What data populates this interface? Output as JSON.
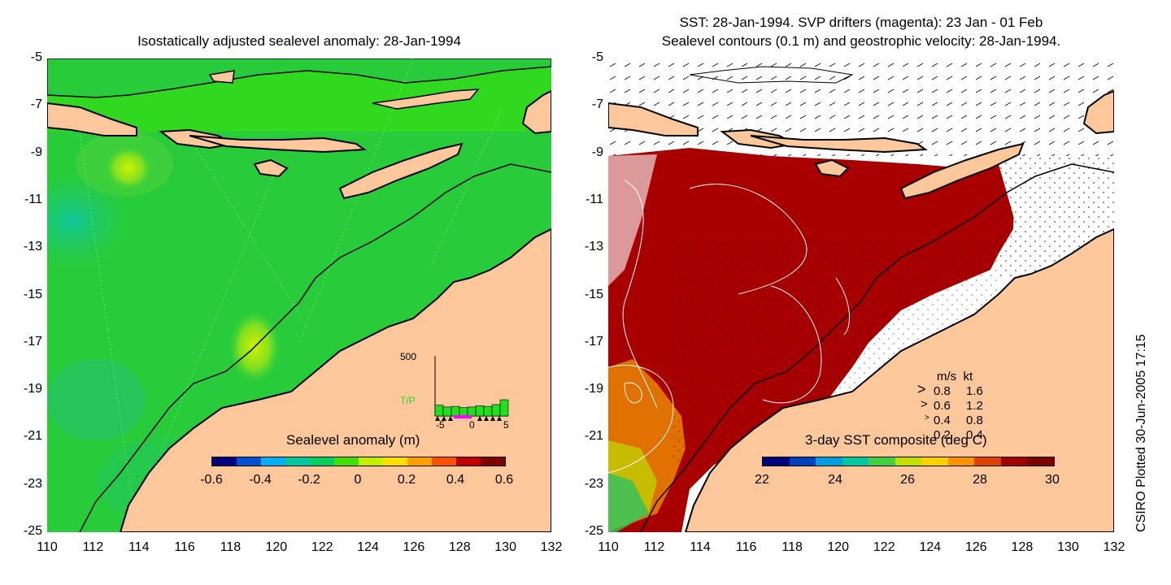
{
  "left_panel": {
    "title": "Isostatically adjusted sealevel anomaly: 28-Jan-1994",
    "colorbar": {
      "title": "Sealevel anomaly (m)",
      "labels": [
        "-0.6",
        "-0.4",
        "-0.2",
        "0",
        "0.2",
        "0.4",
        "0.6"
      ],
      "colors": [
        "#00007f",
        "#0050d0",
        "#00b0f0",
        "#00c8a0",
        "#00d060",
        "#40e000",
        "#c0f000",
        "#ffe000",
        "#ffa000",
        "#ff5000",
        "#c00000",
        "#7f0000"
      ]
    },
    "inset": {
      "y_label": "500",
      "series_label": "T/P",
      "x_labels": [
        "-5",
        "0",
        "5"
      ],
      "bars": [
        0.18,
        0.15,
        0.16,
        0.14,
        0.15,
        0.17,
        0.16,
        0.19,
        0.27
      ],
      "bar_color": "#22dd22",
      "mark_color": "#ff00ff"
    }
  },
  "right_panel": {
    "title_line1": "SST: 28-Jan-1994. SVP drifters (magenta): 23 Jan - 01 Feb",
    "title_line2": "Sealevel contours (0.1 m) and geostrophic velocity: 28-Jan-1994.",
    "colorbar": {
      "title": "3-day SST composite (deg C)",
      "labels": [
        "22",
        "24",
        "26",
        "28",
        "30"
      ],
      "colors": [
        "#00007f",
        "#0040c0",
        "#00a0e0",
        "#00c8a0",
        "#40d040",
        "#c0e000",
        "#ffd000",
        "#ff9000",
        "#e04000",
        "#a00000",
        "#7f0000"
      ]
    },
    "velocity_legend": {
      "header": "m/s  kt",
      "rows": [
        {
          "ms": "0.8",
          "kt": "1.6"
        },
        {
          "ms": "0.6",
          "kt": "1.2"
        },
        {
          "ms": "0.4",
          "kt": "0.8"
        },
        {
          "ms": "0.2",
          "kt": "0.4"
        }
      ]
    }
  },
  "axes": {
    "y_ticks": [
      "-5",
      "-7",
      "-9",
      "-11",
      "-13",
      "-15",
      "-17",
      "-19",
      "-21",
      "-23",
      "-25"
    ],
    "x_ticks": [
      "110",
      "112",
      "114",
      "116",
      "118",
      "120",
      "122",
      "124",
      "126",
      "128",
      "130",
      "132"
    ],
    "lat_range": [
      -25,
      -5
    ],
    "lon_range": [
      110,
      132
    ]
  },
  "credit": "CSIRO Plotted 30-Jun-2005 17:15",
  "colors": {
    "land": "#fcc89b",
    "sea_green": "#1ec83c",
    "sst_hot": "#a80000",
    "sst_orange": "#e06000"
  }
}
